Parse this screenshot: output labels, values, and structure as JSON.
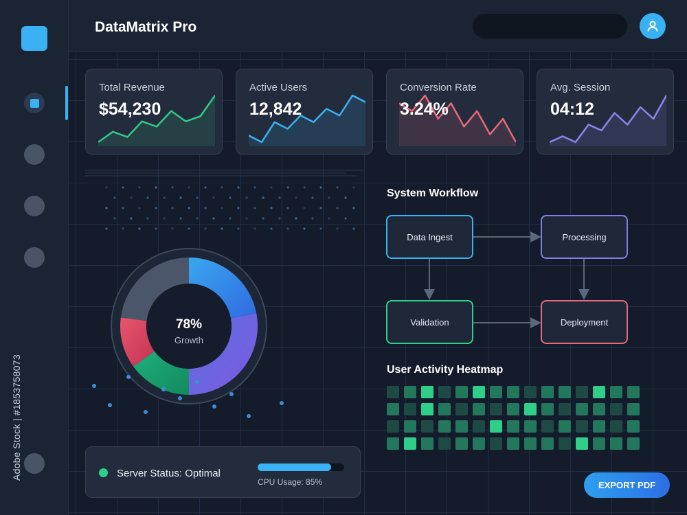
{
  "header": {
    "title": "DataMatrix Pro",
    "search": {
      "value": "",
      "placeholder": ""
    }
  },
  "sidebar": {
    "items": [
      {
        "name": "sidebar-item-dashboard",
        "active": true
      },
      {
        "name": "sidebar-item-2",
        "active": false
      },
      {
        "name": "sidebar-item-3",
        "active": false
      },
      {
        "name": "sidebar-item-4",
        "active": false
      },
      {
        "name": "sidebar-item-bottom",
        "active": false
      }
    ],
    "watermark": "Adobe Stock | #1853758073"
  },
  "kpis": [
    {
      "label": "Total Revenue",
      "value": "$54,230",
      "color": "#34c98a",
      "trend": [
        2,
        4,
        3,
        6,
        5,
        8,
        6,
        7,
        11
      ]
    },
    {
      "label": "Active Users",
      "value": "12,842",
      "color": "#3ab1f3",
      "trend": [
        2,
        1,
        4,
        3,
        5,
        4,
        6,
        5,
        8,
        7
      ]
    },
    {
      "label": "Conversion Rate",
      "value": "3.24%",
      "color": "#e8687c",
      "trend": [
        7,
        6,
        8,
        5,
        7,
        4,
        6,
        3,
        5,
        2
      ]
    },
    {
      "label": "Avg. Session",
      "value": "04:12",
      "color": "#8a86ee",
      "trend": [
        1,
        2,
        1,
        4,
        3,
        6,
        4,
        7,
        5,
        9
      ]
    }
  ],
  "donut": {
    "center_value": "78%",
    "center_label": "Growth",
    "segments": [
      {
        "value": 22,
        "color": "#3aa7f0",
        "color2": "#2f6ae0"
      },
      {
        "value": 28,
        "color": "#5f6fe0",
        "color2": "#7a5ae0"
      },
      {
        "value": 15,
        "color": "#1fb07a",
        "color2": "#128a5f"
      },
      {
        "value": 12,
        "color": "#e8556c",
        "color2": "#c23454"
      },
      {
        "value": 23,
        "color": "#4b566b",
        "color2": "#4b566b"
      }
    ]
  },
  "workflow": {
    "title": "System Workflow",
    "nodes": [
      {
        "id": "data-ingest",
        "label": "Data Ingest",
        "color": "#3ab1f3"
      },
      {
        "id": "processing",
        "label": "Processing",
        "color": "#7f7fe8"
      },
      {
        "id": "validation",
        "label": "Validation",
        "color": "#2fcf8a"
      },
      {
        "id": "deployment",
        "label": "Deployment",
        "color": "#e8687c"
      }
    ]
  },
  "heatmap": {
    "title": "User Activity Heatmap",
    "rows": [
      [
        1,
        2,
        3,
        1,
        2,
        3,
        2,
        2,
        1,
        2,
        2,
        1,
        3,
        2,
        2
      ],
      [
        2,
        1,
        3,
        2,
        1,
        2,
        1,
        2,
        3,
        2,
        1,
        2,
        2,
        1,
        2
      ],
      [
        1,
        2,
        1,
        2,
        2,
        1,
        3,
        2,
        2,
        1,
        2,
        1,
        2,
        1,
        2
      ],
      [
        2,
        3,
        2,
        1,
        2,
        2,
        1,
        2,
        2,
        2,
        1,
        3,
        2,
        2,
        2
      ]
    ],
    "levels": [
      "#1c2a35",
      "#1e4a45",
      "#23775c",
      "#2fcf8a"
    ]
  },
  "status": {
    "label": "Server Status: Optimal",
    "cpu_label": "CPU Usage: 85%",
    "cpu_percent": 85
  },
  "actions": {
    "export_label": "EXPORT PDF"
  }
}
